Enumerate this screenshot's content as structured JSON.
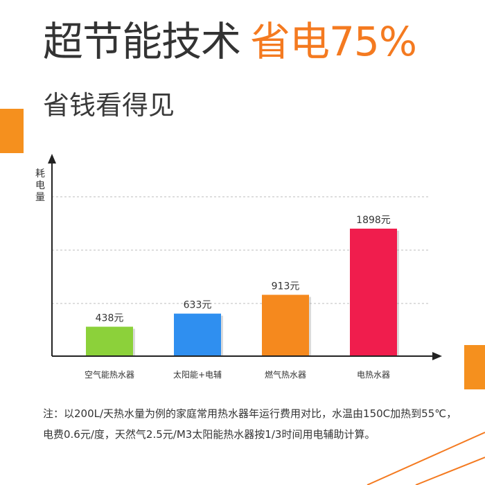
{
  "headline": {
    "main": "超节能技术",
    "accent": "省电75%"
  },
  "subtitle": "省钱看得见",
  "note": "注：以200L/天热水量为例的家庭常用热水器年运行费用对比，水温由150C加热到55℃，电费0.6元/度，天然气2.5元/M3太阳能热水器按1/3时间用电辅助计算。",
  "colors": {
    "accent": "#f47a20",
    "deco": "#f5901e"
  },
  "chart_data": {
    "type": "bar",
    "ylabel": "耗电量",
    "categories": [
      "空气能热水器",
      "太阳能+电辅",
      "燃气热水器",
      "电热水器"
    ],
    "values": [
      438,
      633,
      913,
      1898
    ],
    "value_labels": [
      "438元",
      "633元",
      "913元",
      "1898元"
    ],
    "colors": [
      "#8cd13a",
      "#2f8ff0",
      "#f5891e",
      "#f01d4d"
    ],
    "grid": "dashed horizontal"
  }
}
